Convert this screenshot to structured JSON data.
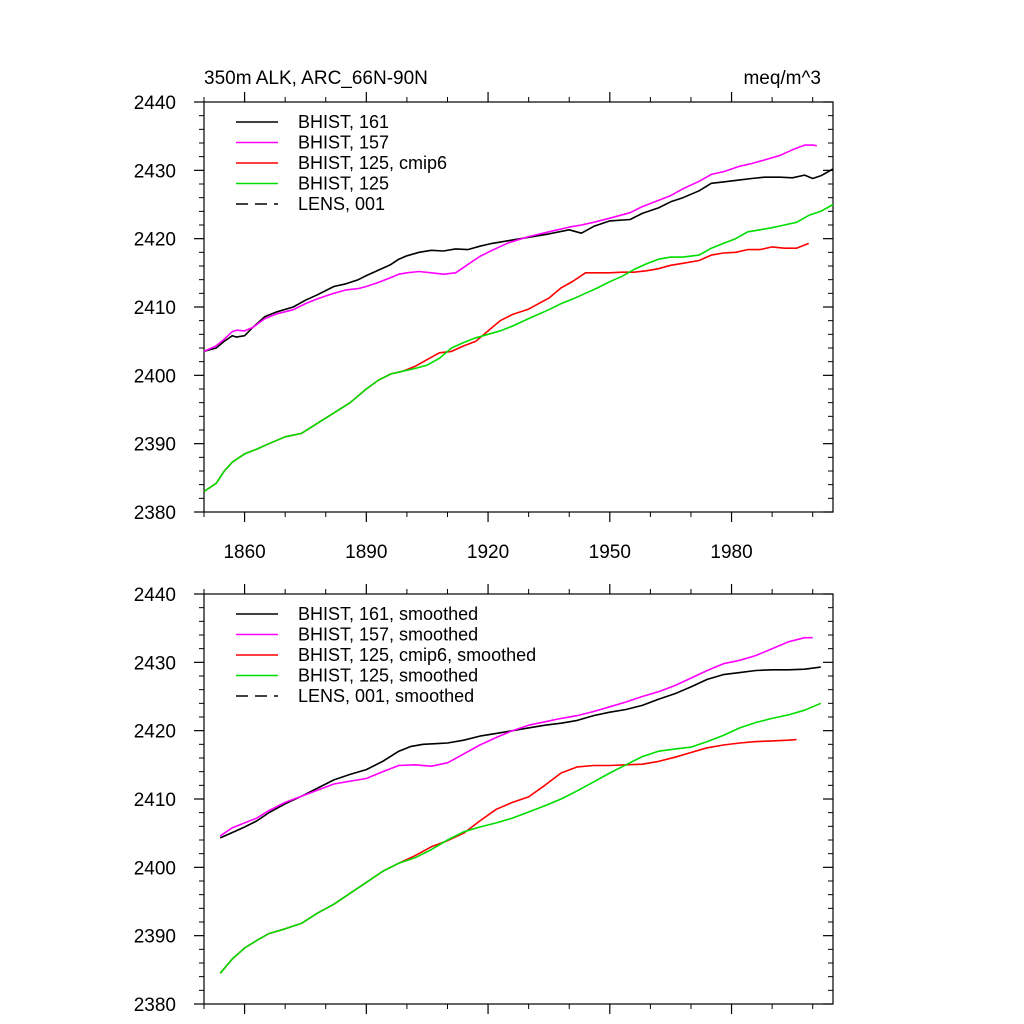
{
  "chart_data": [
    {
      "type": "line",
      "title": "350m ALK, ARC_66N-90N",
      "units": "meq/m^3",
      "xlim": [
        1850,
        2005
      ],
      "ylim": [
        2380,
        2440
      ],
      "x_ticks": [
        1860,
        1890,
        1920,
        1950,
        1980
      ],
      "x_tick_labels": [
        "1860",
        "1890",
        "1920",
        "1950",
        "1980"
      ],
      "y_ticks": [
        2380,
        2390,
        2400,
        2410,
        2420,
        2430,
        2440
      ],
      "y_tick_labels": [
        "2380",
        "2390",
        "2400",
        "2410",
        "2420",
        "2430",
        "2440"
      ],
      "grid": false,
      "legend_position": "top-left",
      "legend": [
        {
          "label": "BHIST, 161",
          "color": "#000000",
          "dash": false
        },
        {
          "label": "BHIST, 157",
          "color": "#ff00ff",
          "dash": false
        },
        {
          "label": "BHIST, 125, cmip6",
          "color": "#ff0000",
          "dash": false
        },
        {
          "label": "BHIST, 125",
          "color": "#00dd00",
          "dash": false
        },
        {
          "label": "LENS, 001",
          "color": "#000000",
          "dash": true
        }
      ],
      "series": [
        {
          "name": "BHIST, 161",
          "color": "#000000",
          "x": [
            1850,
            1853,
            1855,
            1857,
            1858,
            1860,
            1862,
            1865,
            1868,
            1872,
            1875,
            1878,
            1882,
            1885,
            1888,
            1890,
            1893,
            1896,
            1898,
            1900,
            1903,
            1906,
            1909,
            1912,
            1915,
            1918,
            1921,
            1925,
            1930,
            1935,
            1940,
            1943,
            1946,
            1950,
            1955,
            1958,
            1962,
            1965,
            1968,
            1972,
            1975,
            1978,
            1982,
            1985,
            1988,
            1992,
            1995,
            1998,
            2000,
            2002,
            2005
          ],
          "y": [
            2403.5,
            2404.0,
            2405.0,
            2405.8,
            2405.6,
            2405.8,
            2407.0,
            2408.6,
            2409.3,
            2410.0,
            2411.0,
            2411.8,
            2413.0,
            2413.4,
            2414.0,
            2414.6,
            2415.4,
            2416.2,
            2417.0,
            2417.5,
            2418.0,
            2418.3,
            2418.2,
            2418.5,
            2418.4,
            2418.9,
            2419.3,
            2419.7,
            2420.2,
            2420.7,
            2421.3,
            2420.8,
            2421.8,
            2422.6,
            2422.8,
            2423.7,
            2424.5,
            2425.4,
            2426.0,
            2427.0,
            2428.1,
            2428.3,
            2428.6,
            2428.8,
            2429.0,
            2429.0,
            2428.9,
            2429.3,
            2428.8,
            2429.2,
            2430.2
          ]
        },
        {
          "name": "BHIST, 157",
          "color": "#ff00ff",
          "x": [
            1850,
            1853,
            1855,
            1857,
            1858,
            1860,
            1862,
            1865,
            1868,
            1872,
            1875,
            1878,
            1882,
            1885,
            1888,
            1890,
            1893,
            1896,
            1898,
            1900,
            1903,
            1906,
            1909,
            1912,
            1915,
            1918,
            1921,
            1925,
            1930,
            1935,
            1940,
            1943,
            1946,
            1950,
            1955,
            1958,
            1962,
            1965,
            1968,
            1972,
            1975,
            1978,
            1982,
            1985,
            1988,
            1992,
            1995,
            1998,
            2000,
            2001
          ],
          "y": [
            2403.5,
            2404.3,
            2405.3,
            2406.4,
            2406.6,
            2406.5,
            2407.0,
            2408.3,
            2409.0,
            2409.6,
            2410.5,
            2411.2,
            2412.0,
            2412.5,
            2412.7,
            2413.0,
            2413.6,
            2414.3,
            2414.8,
            2415.0,
            2415.2,
            2415.0,
            2414.8,
            2415.0,
            2416.2,
            2417.4,
            2418.3,
            2419.4,
            2420.3,
            2421.0,
            2421.7,
            2422.0,
            2422.4,
            2423.0,
            2423.8,
            2424.7,
            2425.6,
            2426.3,
            2427.3,
            2428.4,
            2429.4,
            2429.8,
            2430.6,
            2431.0,
            2431.5,
            2432.2,
            2433.0,
            2433.7,
            2433.7,
            2433.6
          ]
        },
        {
          "name": "BHIST, 125, cmip6",
          "color": "#ff0000",
          "x": [
            1850,
            1853,
            1855,
            1857,
            1860,
            1863,
            1866,
            1870,
            1874,
            1878,
            1882,
            1886,
            1890,
            1893,
            1896,
            1899,
            1902,
            1905,
            1908,
            1911,
            1914,
            1917,
            1920,
            1923,
            1926,
            1930,
            1935,
            1938,
            1941,
            1944,
            1947,
            1950,
            1953,
            1956,
            1959,
            1962,
            1965,
            1968,
            1972,
            1975,
            1978,
            1981,
            1984,
            1987,
            1990,
            1993,
            1996,
            1999
          ],
          "y": [
            2383.0,
            2384.2,
            2386.0,
            2387.3,
            2388.5,
            2389.2,
            2390.0,
            2391.0,
            2391.5,
            2393.0,
            2394.5,
            2396.0,
            2398.0,
            2399.3,
            2400.2,
            2400.6,
            2401.3,
            2402.3,
            2403.3,
            2403.5,
            2404.3,
            2405.0,
            2406.5,
            2408.0,
            2408.9,
            2409.7,
            2411.3,
            2412.8,
            2413.8,
            2415.0,
            2415.0,
            2415.0,
            2415.1,
            2415.1,
            2415.3,
            2415.6,
            2416.1,
            2416.4,
            2416.8,
            2417.6,
            2417.9,
            2418.0,
            2418.4,
            2418.4,
            2418.8,
            2418.6,
            2418.6,
            2419.3
          ]
        },
        {
          "name": "BHIST, 125",
          "color": "#00dd00",
          "x": [
            1850,
            1853,
            1855,
            1857,
            1860,
            1863,
            1866,
            1870,
            1874,
            1878,
            1882,
            1886,
            1890,
            1893,
            1896,
            1899,
            1902,
            1905,
            1908,
            1911,
            1914,
            1917,
            1920,
            1923,
            1926,
            1930,
            1935,
            1938,
            1941,
            1944,
            1947,
            1950,
            1953,
            1956,
            1959,
            1962,
            1965,
            1968,
            1972,
            1975,
            1978,
            1981,
            1984,
            1987,
            1990,
            1993,
            1996,
            1999,
            2002,
            2005
          ],
          "y": [
            2383.0,
            2384.2,
            2386.0,
            2387.3,
            2388.5,
            2389.2,
            2390.0,
            2391.0,
            2391.5,
            2393.0,
            2394.5,
            2396.0,
            2398.0,
            2399.3,
            2400.2,
            2400.6,
            2401.0,
            2401.5,
            2402.5,
            2404.0,
            2404.8,
            2405.5,
            2406.0,
            2406.5,
            2407.2,
            2408.3,
            2409.6,
            2410.5,
            2411.2,
            2412.0,
            2412.8,
            2413.7,
            2414.5,
            2415.5,
            2416.3,
            2417.0,
            2417.3,
            2417.3,
            2417.6,
            2418.6,
            2419.3,
            2420.0,
            2421.0,
            2421.3,
            2421.6,
            2422.0,
            2422.4,
            2423.4,
            2424.0,
            2425.0
          ]
        }
      ]
    },
    {
      "type": "line",
      "title": "",
      "xlim": [
        1850,
        2005
      ],
      "ylim": [
        2380,
        2440
      ],
      "x_ticks": [
        1860,
        1890,
        1920,
        1950,
        1980
      ],
      "y_ticks": [
        2380,
        2390,
        2400,
        2410,
        2420,
        2430,
        2440
      ],
      "y_tick_labels": [
        "2380",
        "2390",
        "2400",
        "2410",
        "2420",
        "2430",
        "2440"
      ],
      "grid": false,
      "legend_position": "top-left",
      "legend": [
        {
          "label": "BHIST, 161, smoothed",
          "color": "#000000",
          "dash": false
        },
        {
          "label": "BHIST, 157, smoothed",
          "color": "#ff00ff",
          "dash": false
        },
        {
          "label": "BHIST, 125, cmip6, smoothed",
          "color": "#ff0000",
          "dash": false
        },
        {
          "label": "BHIST, 125, smoothed",
          "color": "#00dd00",
          "dash": false
        },
        {
          "label": "LENS, 001, smoothed",
          "color": "#000000",
          "dash": true
        }
      ],
      "series": [
        {
          "name": "BHIST, 161, smoothed",
          "color": "#000000",
          "x": [
            1854,
            1857,
            1860,
            1863,
            1866,
            1870,
            1874,
            1878,
            1882,
            1886,
            1890,
            1894,
            1898,
            1901,
            1904,
            1907,
            1910,
            1914,
            1918,
            1922,
            1926,
            1930,
            1934,
            1938,
            1942,
            1946,
            1950,
            1954,
            1958,
            1962,
            1966,
            1970,
            1974,
            1978,
            1982,
            1986,
            1990,
            1994,
            1998,
            2002
          ],
          "y": [
            2404.3,
            2405.1,
            2405.9,
            2406.8,
            2408.0,
            2409.3,
            2410.4,
            2411.6,
            2412.8,
            2413.6,
            2414.3,
            2415.5,
            2417.0,
            2417.7,
            2418.0,
            2418.1,
            2418.2,
            2418.6,
            2419.2,
            2419.6,
            2420.0,
            2420.4,
            2420.8,
            2421.1,
            2421.5,
            2422.2,
            2422.7,
            2423.1,
            2423.7,
            2424.6,
            2425.4,
            2426.4,
            2427.5,
            2428.2,
            2428.5,
            2428.8,
            2428.9,
            2428.9,
            2429.0,
            2429.3
          ]
        },
        {
          "name": "BHIST, 157, smoothed",
          "color": "#ff00ff",
          "x": [
            1854,
            1857,
            1860,
            1863,
            1866,
            1870,
            1874,
            1878,
            1882,
            1886,
            1890,
            1894,
            1898,
            1902,
            1906,
            1910,
            1914,
            1918,
            1922,
            1926,
            1930,
            1934,
            1938,
            1942,
            1946,
            1950,
            1954,
            1958,
            1962,
            1966,
            1970,
            1974,
            1978,
            1982,
            1986,
            1990,
            1994,
            1998,
            2000
          ],
          "y": [
            2404.6,
            2405.8,
            2406.5,
            2407.2,
            2408.3,
            2409.5,
            2410.4,
            2411.3,
            2412.2,
            2412.6,
            2413.0,
            2414.0,
            2414.9,
            2415.0,
            2414.8,
            2415.3,
            2416.6,
            2417.9,
            2419.0,
            2420.0,
            2420.8,
            2421.3,
            2421.8,
            2422.2,
            2422.8,
            2423.5,
            2424.2,
            2425.0,
            2425.7,
            2426.6,
            2427.7,
            2428.8,
            2429.8,
            2430.3,
            2431.0,
            2432.0,
            2433.0,
            2433.6,
            2433.6
          ]
        },
        {
          "name": "BHIST, 125, cmip6, smoothed",
          "color": "#ff0000",
          "x": [
            1854,
            1857,
            1860,
            1863,
            1866,
            1870,
            1874,
            1878,
            1882,
            1886,
            1890,
            1894,
            1898,
            1902,
            1906,
            1910,
            1914,
            1918,
            1922,
            1926,
            1930,
            1934,
            1938,
            1942,
            1946,
            1950,
            1954,
            1958,
            1962,
            1966,
            1970,
            1974,
            1978,
            1982,
            1986,
            1990,
            1994,
            1996
          ],
          "y": [
            2384.5,
            2386.6,
            2388.2,
            2389.3,
            2390.3,
            2391.0,
            2391.8,
            2393.3,
            2394.6,
            2396.2,
            2397.8,
            2399.4,
            2400.6,
            2401.7,
            2403.0,
            2403.9,
            2405.0,
            2406.8,
            2408.5,
            2409.5,
            2410.3,
            2412.0,
            2413.8,
            2414.7,
            2414.9,
            2414.9,
            2415.0,
            2415.1,
            2415.5,
            2416.1,
            2416.8,
            2417.5,
            2417.9,
            2418.2,
            2418.4,
            2418.5,
            2418.6,
            2418.7
          ]
        },
        {
          "name": "BHIST, 125, smoothed",
          "color": "#00dd00",
          "x": [
            1854,
            1857,
            1860,
            1863,
            1866,
            1870,
            1874,
            1878,
            1882,
            1886,
            1890,
            1894,
            1898,
            1902,
            1906,
            1910,
            1914,
            1918,
            1922,
            1926,
            1930,
            1934,
            1938,
            1942,
            1946,
            1950,
            1954,
            1958,
            1962,
            1966,
            1970,
            1974,
            1978,
            1982,
            1986,
            1990,
            1994,
            1998,
            2002
          ],
          "y": [
            2384.5,
            2386.6,
            2388.2,
            2389.3,
            2390.3,
            2391.0,
            2391.8,
            2393.3,
            2394.6,
            2396.2,
            2397.8,
            2399.4,
            2400.6,
            2401.4,
            2402.6,
            2404.0,
            2405.2,
            2405.9,
            2406.5,
            2407.2,
            2408.1,
            2409.0,
            2410.0,
            2411.2,
            2412.5,
            2413.8,
            2415.0,
            2416.2,
            2417.0,
            2417.3,
            2417.6,
            2418.4,
            2419.3,
            2420.4,
            2421.2,
            2421.8,
            2422.3,
            2423.0,
            2424.0
          ]
        }
      ]
    }
  ]
}
